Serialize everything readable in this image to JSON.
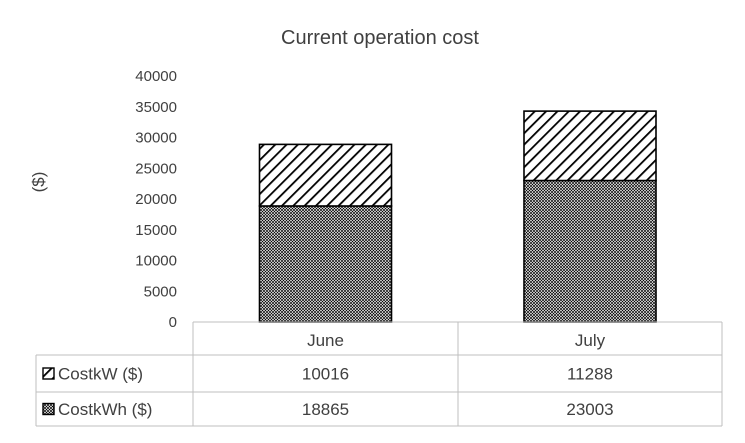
{
  "chart_data": {
    "type": "bar",
    "stacked": true,
    "title": "Current operation cost",
    "ylabel": "($)",
    "xlabel": "",
    "ylim": [
      0,
      40000
    ],
    "ytick_step": 5000,
    "yticks": [
      "0",
      "5000",
      "10000",
      "15000",
      "20000",
      "25000",
      "30000",
      "35000",
      "40000"
    ],
    "grid": false,
    "legend": "data-table",
    "categories": [
      "June",
      "July"
    ],
    "series": [
      {
        "name": "CostkWh ($)",
        "values": [
          18865,
          23003
        ],
        "pattern": "fine-crosshatch"
      },
      {
        "name": "CostkW ($)",
        "values": [
          10016,
          11288
        ],
        "pattern": "diagonal-hatch"
      }
    ],
    "data_table": {
      "rows": [
        {
          "label": "CostkW ($)",
          "pattern": "diagonal-hatch",
          "cells": [
            "10016",
            "11288"
          ]
        },
        {
          "label": "CostkWh ($)",
          "pattern": "fine-crosshatch",
          "cells": [
            "18865",
            "23003"
          ]
        }
      ]
    }
  }
}
